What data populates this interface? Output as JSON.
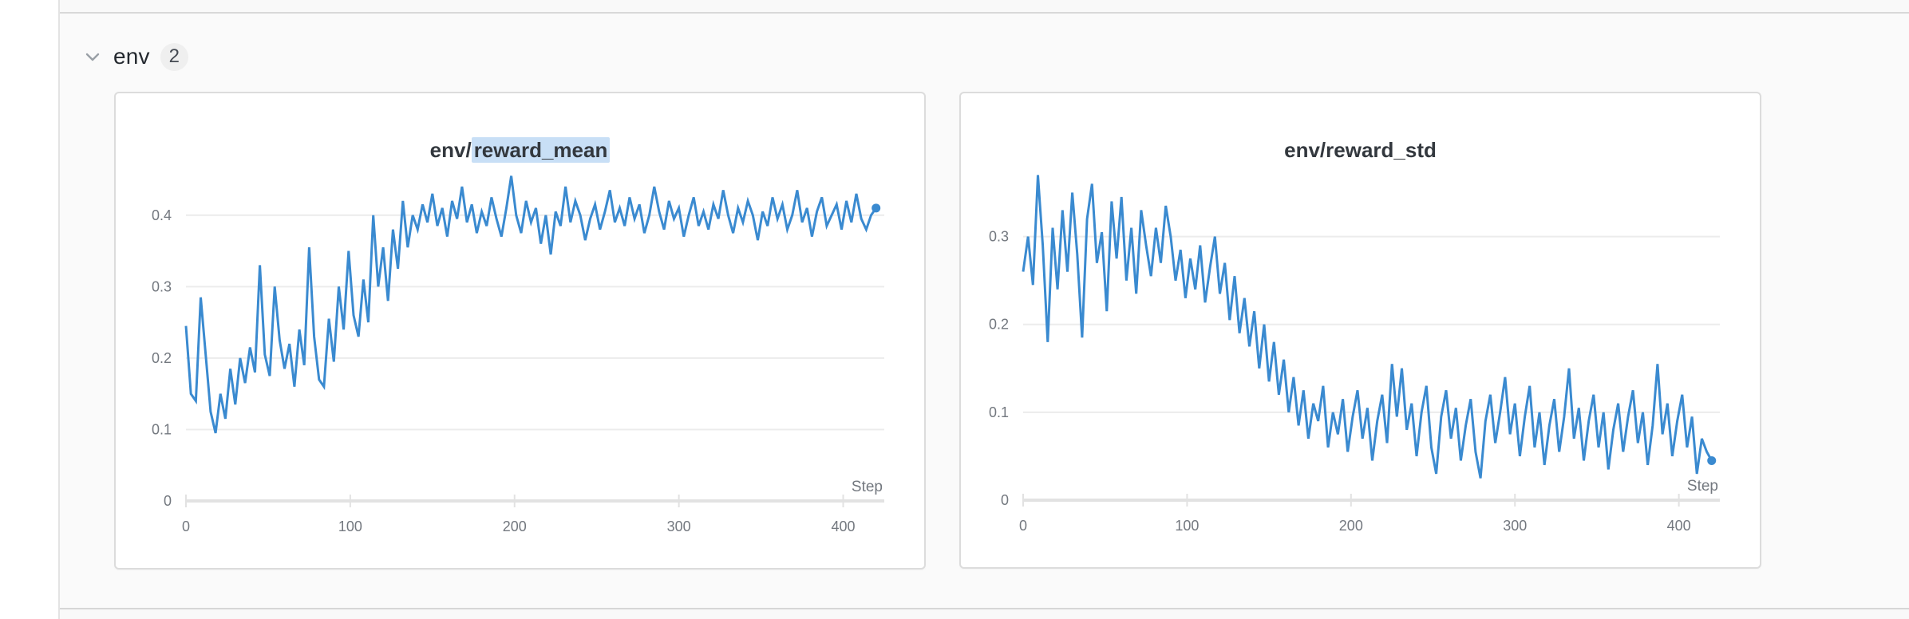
{
  "ui": {
    "accent_blue": "#3a8ad0",
    "highlight_bg": "#c8dff6",
    "grid_color": "#ececec",
    "axis_color": "#e2e2e2",
    "tick_text_color": "#73787f",
    "title_color": "#33383e"
  },
  "section": {
    "name": "env",
    "count": "2",
    "chevron_icon": "chevron-down"
  },
  "chart_data": [
    {
      "type": "line",
      "title": "env/reward_mean",
      "title_parts": [
        {
          "text": "env/",
          "highlight": false
        },
        {
          "text": "reward_mean",
          "highlight": true
        }
      ],
      "xlabel": "Step",
      "ylabel": "",
      "legend": "none",
      "grid": "horizontal",
      "xlim": [
        0,
        425
      ],
      "ylim": [
        0,
        0.45
      ],
      "xticks": [
        0,
        100,
        200,
        300,
        400
      ],
      "yticks": [
        0,
        0.1,
        0.2,
        0.3,
        0.4
      ],
      "line_color": "#3a8ad0",
      "end_marker": true,
      "x_start": 0,
      "x_interval": 3,
      "values": [
        0.245,
        0.15,
        0.14,
        0.285,
        0.205,
        0.125,
        0.095,
        0.15,
        0.115,
        0.185,
        0.135,
        0.2,
        0.165,
        0.215,
        0.18,
        0.33,
        0.205,
        0.175,
        0.3,
        0.225,
        0.185,
        0.22,
        0.16,
        0.24,
        0.19,
        0.355,
        0.23,
        0.17,
        0.16,
        0.255,
        0.195,
        0.3,
        0.24,
        0.35,
        0.26,
        0.23,
        0.31,
        0.25,
        0.4,
        0.3,
        0.355,
        0.28,
        0.38,
        0.325,
        0.42,
        0.355,
        0.4,
        0.38,
        0.415,
        0.39,
        0.43,
        0.385,
        0.41,
        0.37,
        0.42,
        0.395,
        0.44,
        0.39,
        0.415,
        0.375,
        0.405,
        0.385,
        0.425,
        0.395,
        0.37,
        0.41,
        0.455,
        0.4,
        0.375,
        0.42,
        0.39,
        0.41,
        0.36,
        0.4,
        0.345,
        0.405,
        0.385,
        0.44,
        0.39,
        0.42,
        0.4,
        0.365,
        0.395,
        0.415,
        0.38,
        0.405,
        0.435,
        0.39,
        0.41,
        0.385,
        0.425,
        0.395,
        0.415,
        0.375,
        0.4,
        0.44,
        0.405,
        0.38,
        0.42,
        0.395,
        0.41,
        0.37,
        0.4,
        0.425,
        0.385,
        0.405,
        0.38,
        0.415,
        0.395,
        0.435,
        0.4,
        0.375,
        0.41,
        0.39,
        0.42,
        0.4,
        0.365,
        0.405,
        0.385,
        0.425,
        0.395,
        0.415,
        0.38,
        0.4,
        0.435,
        0.39,
        0.41,
        0.37,
        0.405,
        0.425,
        0.385,
        0.4,
        0.415,
        0.38,
        0.42,
        0.39,
        0.43,
        0.395,
        0.38,
        0.4,
        0.41
      ]
    },
    {
      "type": "line",
      "title": "env/reward_std",
      "title_parts": [
        {
          "text": "env/reward_std",
          "highlight": false
        }
      ],
      "xlabel": "Step",
      "ylabel": "",
      "legend": "none",
      "grid": "horizontal",
      "xlim": [
        0,
        425
      ],
      "ylim": [
        0,
        0.365
      ],
      "xticks": [
        0,
        100,
        200,
        300,
        400
      ],
      "yticks": [
        0,
        0.1,
        0.2,
        0.3
      ],
      "line_color": "#3a8ad0",
      "end_marker": true,
      "x_start": 0,
      "x_interval": 3,
      "values": [
        0.26,
        0.3,
        0.245,
        0.37,
        0.29,
        0.18,
        0.31,
        0.24,
        0.33,
        0.26,
        0.35,
        0.28,
        0.185,
        0.32,
        0.36,
        0.27,
        0.305,
        0.215,
        0.34,
        0.275,
        0.345,
        0.25,
        0.31,
        0.235,
        0.33,
        0.29,
        0.255,
        0.31,
        0.27,
        0.335,
        0.3,
        0.25,
        0.285,
        0.23,
        0.275,
        0.24,
        0.29,
        0.225,
        0.265,
        0.3,
        0.235,
        0.27,
        0.205,
        0.255,
        0.19,
        0.23,
        0.175,
        0.215,
        0.15,
        0.2,
        0.135,
        0.18,
        0.12,
        0.16,
        0.1,
        0.14,
        0.085,
        0.125,
        0.07,
        0.11,
        0.09,
        0.13,
        0.06,
        0.1,
        0.075,
        0.115,
        0.055,
        0.095,
        0.125,
        0.07,
        0.105,
        0.045,
        0.09,
        0.12,
        0.065,
        0.155,
        0.095,
        0.15,
        0.08,
        0.11,
        0.05,
        0.1,
        0.13,
        0.06,
        0.03,
        0.095,
        0.125,
        0.07,
        0.105,
        0.045,
        0.085,
        0.115,
        0.055,
        0.025,
        0.09,
        0.12,
        0.065,
        0.1,
        0.14,
        0.075,
        0.11,
        0.05,
        0.095,
        0.13,
        0.06,
        0.1,
        0.04,
        0.085,
        0.115,
        0.055,
        0.095,
        0.15,
        0.07,
        0.105,
        0.045,
        0.09,
        0.12,
        0.06,
        0.1,
        0.035,
        0.08,
        0.11,
        0.055,
        0.095,
        0.125,
        0.065,
        0.1,
        0.04,
        0.085,
        0.155,
        0.075,
        0.11,
        0.05,
        0.09,
        0.12,
        0.06,
        0.095,
        0.03,
        0.07,
        0.055,
        0.045
      ]
    }
  ]
}
